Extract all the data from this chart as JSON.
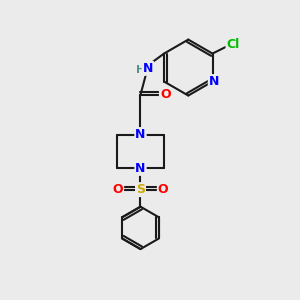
{
  "background_color": "#ebebeb",
  "bond_color": "#1a1a1a",
  "atom_colors": {
    "N": "#0000ff",
    "O": "#ff0000",
    "S": "#ccaa00",
    "Cl": "#00bb00",
    "NH": "#5a9090",
    "C": "#1a1a1a"
  },
  "font_size_atoms": 9,
  "figsize": [
    3.0,
    3.0
  ],
  "dpi": 100
}
